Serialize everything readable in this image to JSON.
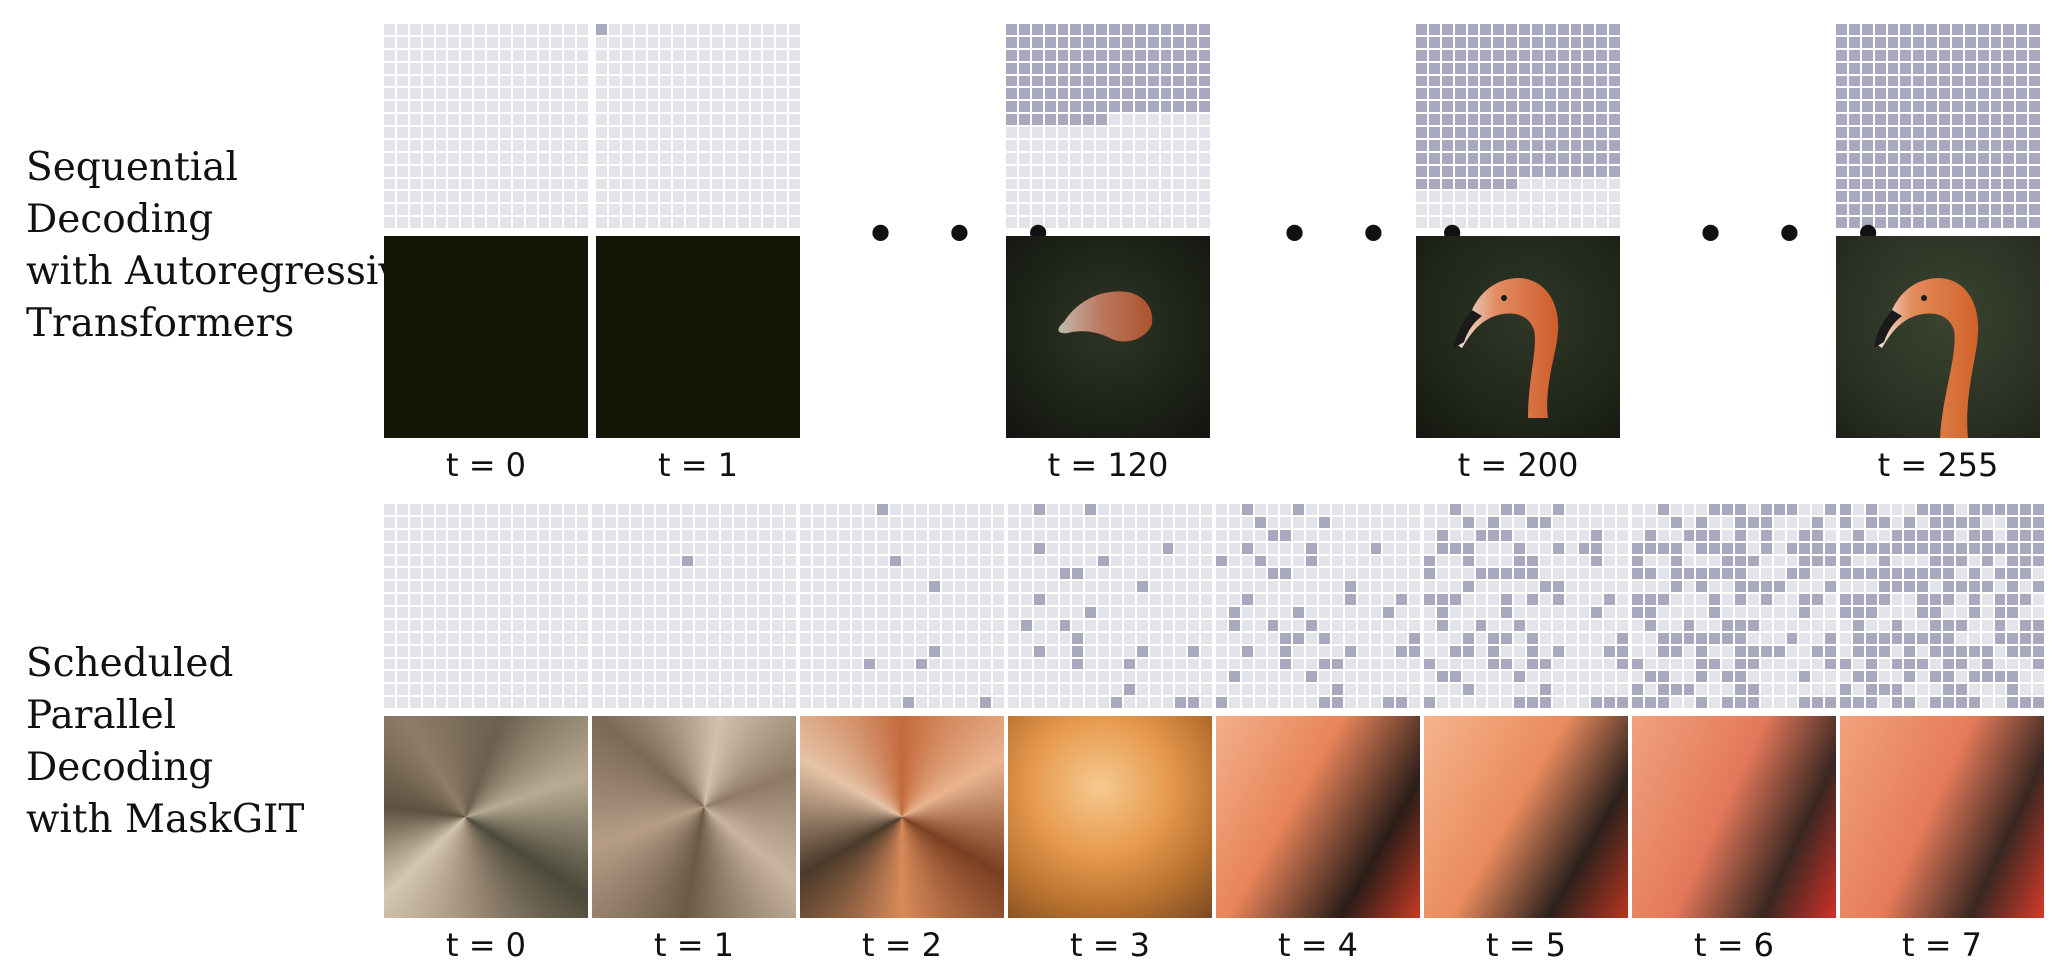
{
  "rows": {
    "sequential": {
      "label": "Sequential\nDecoding\nwith Autoregressive\nTransformers",
      "steps": [
        {
          "t": "t = 0",
          "decoded_fraction": 0.0,
          "image": "black"
        },
        {
          "t": "t = 1",
          "decoded_fraction": 0.004,
          "image": "black"
        },
        {
          "t": "t = 120",
          "decoded_fraction": 0.47,
          "image": "flamingo-partial"
        },
        {
          "t": "t = 200",
          "decoded_fraction": 0.78,
          "image": "flamingo-head"
        },
        {
          "t": "t = 255",
          "decoded_fraction": 1.0,
          "image": "flamingo-full"
        }
      ],
      "ellipsis": "• • •"
    },
    "parallel": {
      "label": "Scheduled\nParallel\nDecoding\nwith MaskGIT",
      "steps": [
        {
          "t": "t = 0",
          "decoded_fraction": 0.0
        },
        {
          "t": "t = 1",
          "decoded_fraction": 0.004
        },
        {
          "t": "t = 2",
          "decoded_fraction": 0.03
        },
        {
          "t": "t = 3",
          "decoded_fraction": 0.09
        },
        {
          "t": "t = 4",
          "decoded_fraction": 0.17
        },
        {
          "t": "t = 5",
          "decoded_fraction": 0.3
        },
        {
          "t": "t = 6",
          "decoded_fraction": 0.48
        },
        {
          "t": "t = 7",
          "decoded_fraction": 0.66
        }
      ]
    }
  },
  "colors": {
    "masked": "#e3e3ea",
    "decoded": "#a8a8bf",
    "grid_line": "#ffffff"
  }
}
